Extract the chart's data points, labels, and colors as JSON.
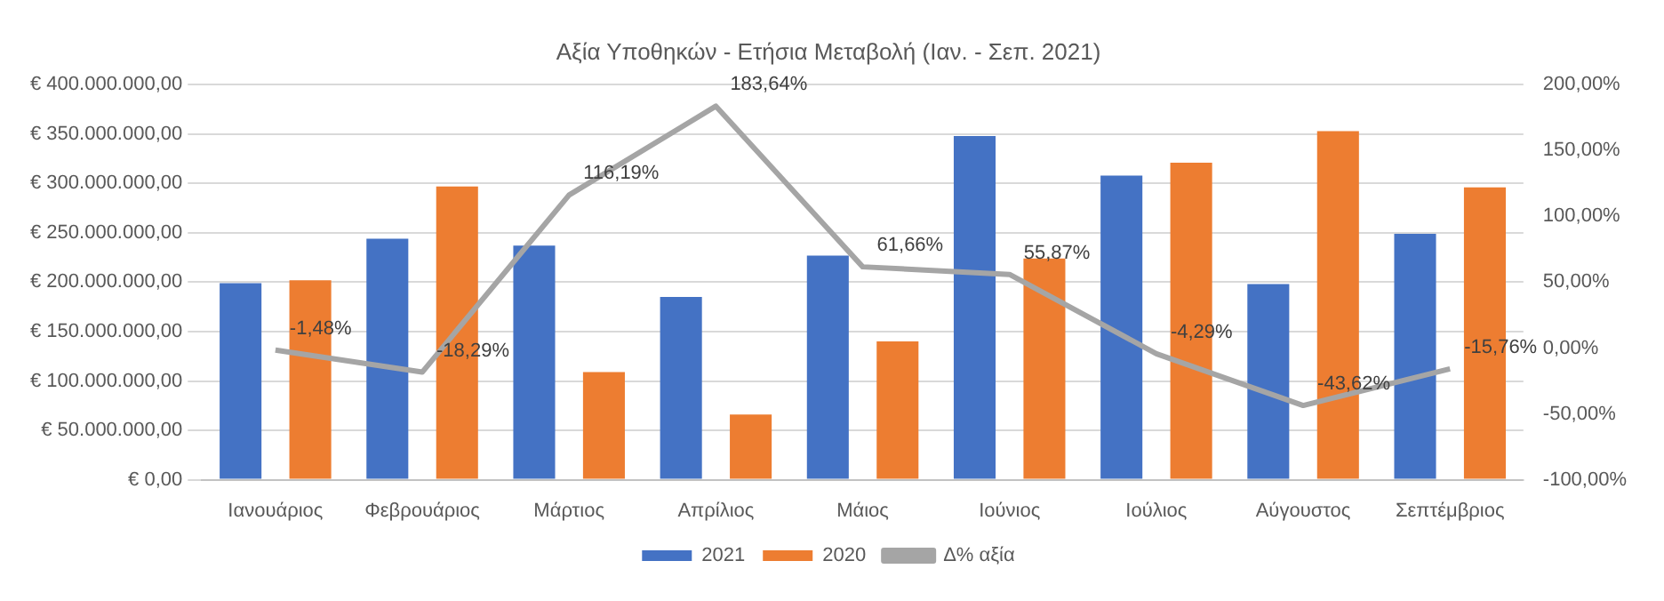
{
  "chart_data": {
    "type": "bar",
    "title": "Αξία Υποθηκών - Ετήσια Μεταβολή (Ιαν. - Σεπ. 2021)",
    "categories": [
      "Ιανουάριος",
      "Φεβρουάριος",
      "Μάρτιος",
      "Απρίλιος",
      "Μάιος",
      "Ιούνιος",
      "Ιούλιος",
      "Αύγουστος",
      "Σεπτέμβριος"
    ],
    "series": [
      {
        "name": "2021",
        "color": "#4472c4",
        "values": [
          199000000,
          244000000,
          237000000,
          185000000,
          227000000,
          348000000,
          308000000,
          198000000,
          249000000
        ]
      },
      {
        "name": "2020",
        "color": "#ed7d31",
        "values": [
          202000000,
          297000000,
          109000000,
          66000000,
          140000000,
          224000000,
          321000000,
          353000000,
          296000000
        ]
      },
      {
        "name": "Δ% αξία",
        "type": "line",
        "axis": "y2",
        "color": "#a5a5a5",
        "marker": "none",
        "values": [
          -1.48,
          -18.29,
          116.19,
          183.64,
          61.66,
          55.87,
          -4.29,
          -43.62,
          -15.76
        ],
        "value_labels": [
          "-1,48%",
          "-18,29%",
          "116,19%",
          "183,64%",
          "61,66%",
          "55,87%",
          "-4,29%",
          "-43,62%",
          "-15,76%"
        ]
      }
    ],
    "ylim": [
      0,
      400000000
    ],
    "yticks": [
      {
        "value": 0,
        "label": "€ 0,00"
      },
      {
        "value": 50000000,
        "label": "€ 50.000.000,00"
      },
      {
        "value": 100000000,
        "label": "€ 100.000.000,00"
      },
      {
        "value": 150000000,
        "label": "€ 150.000.000,00"
      },
      {
        "value": 200000000,
        "label": "€ 200.000.000,00"
      },
      {
        "value": 250000000,
        "label": "€ 250.000.000,00"
      },
      {
        "value": 300000000,
        "label": "€ 300.000.000,00"
      },
      {
        "value": 350000000,
        "label": "€ 350.000.000,00"
      },
      {
        "value": 400000000,
        "label": "€ 400.000.000,00"
      }
    ],
    "y2lim": [
      -100,
      200
    ],
    "y2ticks": [
      {
        "value": -100,
        "label": "-100,00%"
      },
      {
        "value": -50,
        "label": "-50,00%"
      },
      {
        "value": 0,
        "label": "0,00%"
      },
      {
        "value": 50,
        "label": "50,00%"
      },
      {
        "value": 100,
        "label": "100,00%"
      },
      {
        "value": 150,
        "label": "150,00%"
      },
      {
        "value": 200,
        "label": "200,00%"
      }
    ],
    "grid": "y",
    "legend": "bottom"
  }
}
